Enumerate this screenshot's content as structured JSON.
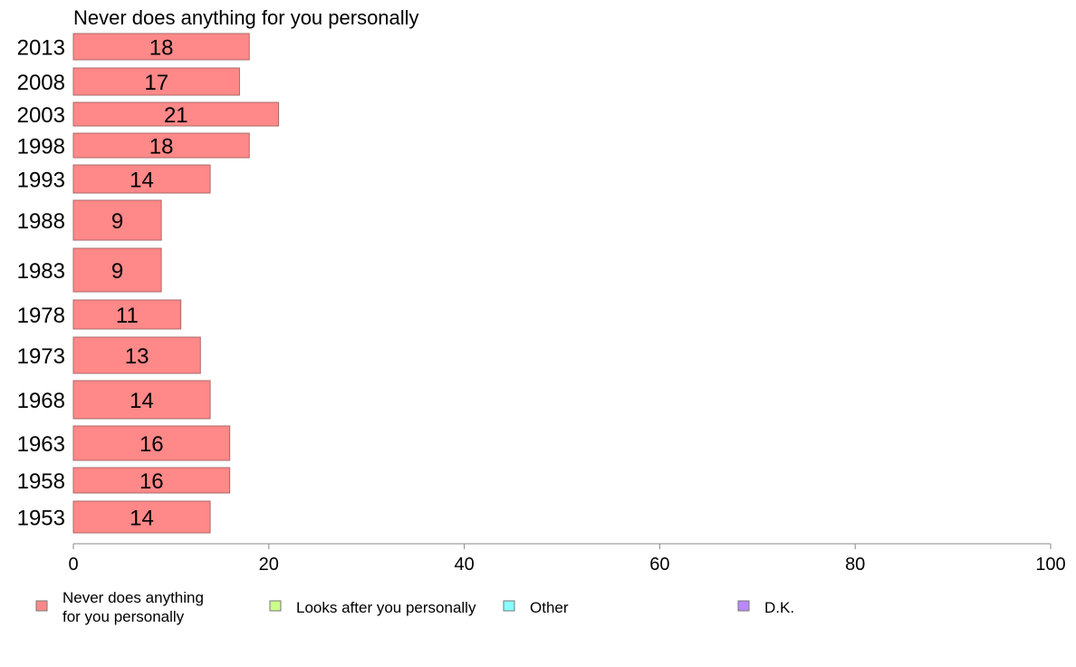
{
  "chart_data": {
    "type": "bar",
    "orientation": "horizontal",
    "title": "Never does anything for you personally",
    "categories": [
      "2013",
      "2008",
      "2003",
      "1998",
      "1993",
      "1988",
      "1983",
      "1978",
      "1973",
      "1968",
      "1963",
      "1958",
      "1953"
    ],
    "series": [
      {
        "name": "Never does anything for you personally",
        "color": "#ff8888",
        "values": [
          18,
          17,
          21,
          18,
          14,
          9,
          9,
          11,
          13,
          14,
          16,
          16,
          14
        ]
      }
    ],
    "xlim": [
      0,
      100
    ],
    "xticks": [
      "0",
      "20",
      "40",
      "60",
      "80",
      "100"
    ],
    "legend": [
      {
        "label_lines": [
          "Never does anything",
          "for you personally"
        ],
        "color": "#ff8888"
      },
      {
        "label_lines": [
          "Looks after you personally"
        ],
        "color": "#ccff88"
      },
      {
        "label_lines": [
          "Other"
        ],
        "color": "#88ffff"
      },
      {
        "label_lines": [
          "D.K."
        ],
        "color": "#bb88ff"
      }
    ],
    "legend_position": "bottom",
    "grid": false
  }
}
